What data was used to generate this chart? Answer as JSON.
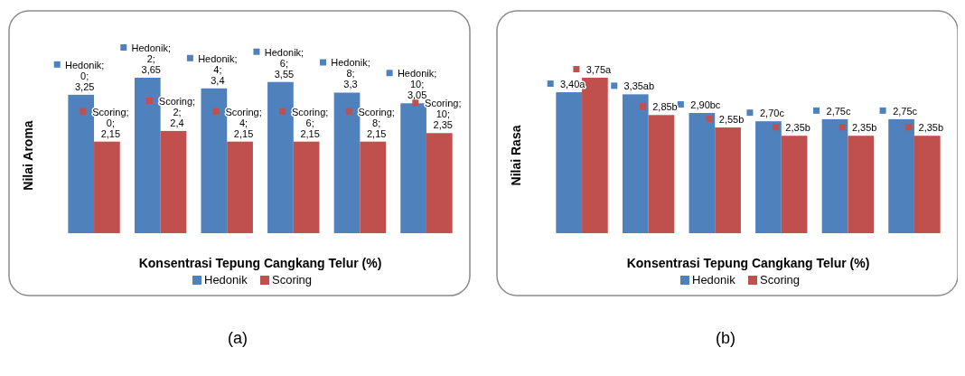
{
  "chart_data": [
    {
      "type": "bar",
      "ylabel": "Nilai Aroma",
      "xlabel": "Konsentrasi Tepung Cangkang Telur (%)",
      "categories": [
        null,
        null,
        null,
        null,
        null,
        null
      ],
      "legend": "bottom",
      "annotations": [
        "(a)"
      ],
      "series": [
        {
          "name": "Hedonik",
          "color": "#4f81bd",
          "values": [
            3.25,
            3.65,
            3.4,
            3.55,
            3.3,
            3.05
          ],
          "value_labels": [
            "Hedonik; 0; 3,25",
            "Hedonik; 2; 3,65",
            "Hedonik; 4; 3,4",
            "Hedonik; 6; 3,55",
            "Hedonik; 8; 3,3",
            "Hedonik; 10; 3,05"
          ]
        },
        {
          "name": "Scoring",
          "color": "#c0504d",
          "values": [
            2.15,
            2.4,
            2.15,
            2.15,
            2.15,
            2.35
          ],
          "value_labels": [
            "Scoring; 0; 2,15",
            "Scoring; 2; 2,4",
            "Scoring; 4; 2,15",
            "Scoring; 6; 2,15",
            "Scoring; 8; 2,15",
            "Scoring; 10; 2,35"
          ]
        }
      ]
    },
    {
      "type": "bar",
      "ylabel": "Nilai Rasa",
      "xlabel": "Konsentrasi Tepung Cangkang Telur (%)",
      "categories": [
        null,
        null,
        null,
        null,
        null,
        null
      ],
      "legend": "bottom",
      "annotations": [
        "(b)"
      ],
      "series": [
        {
          "name": "Hedonik",
          "color": "#4f81bd",
          "values": [
            3.4,
            3.35,
            2.9,
            2.7,
            2.75,
            2.75
          ],
          "value_labels": [
            "3,40a",
            "3,35ab",
            "2,90bc",
            "2,70c",
            "2,75c",
            "2,75c"
          ]
        },
        {
          "name": "Scoring",
          "color": "#c0504d",
          "values": [
            3.75,
            2.85,
            2.55,
            2.35,
            2.35,
            2.35
          ],
          "value_labels": [
            "3,75a",
            "2,85b",
            "2,55b",
            "2,35b",
            "2,35b",
            "2,35b"
          ]
        }
      ]
    }
  ]
}
